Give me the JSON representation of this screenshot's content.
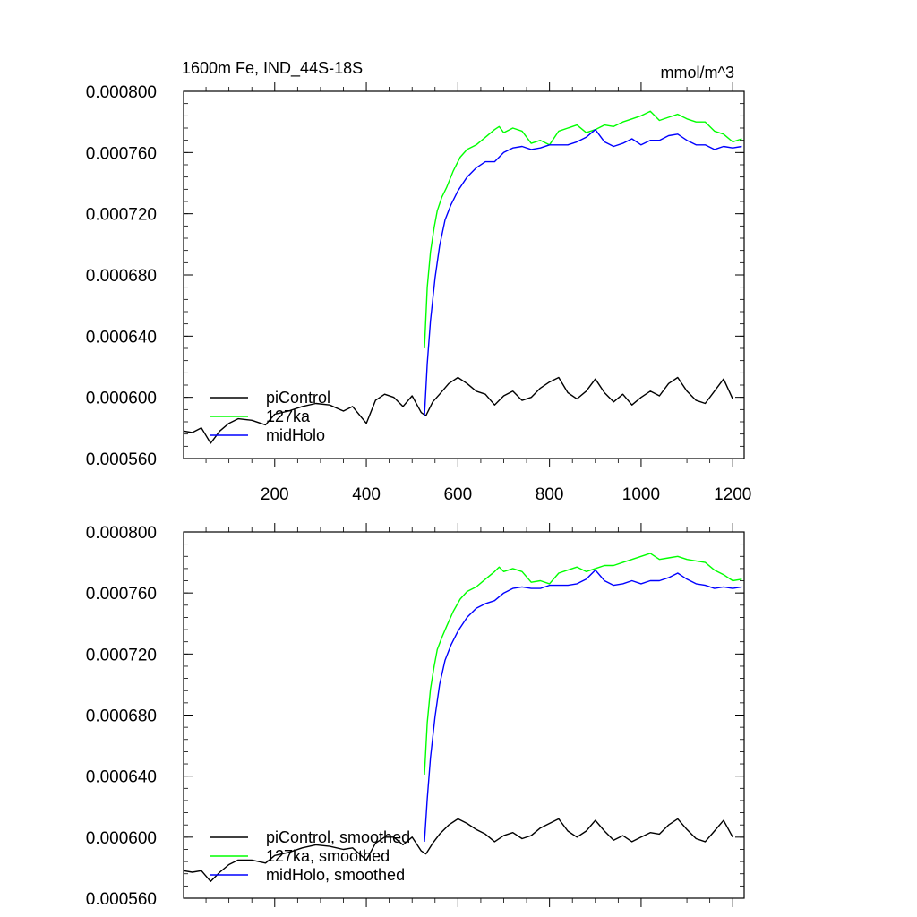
{
  "chart_data": [
    {
      "type": "line",
      "title": "1600m Fe, IND_44S-18S",
      "units": "mmol/m^3",
      "xlim": [
        1,
        1225
      ],
      "ylim": [
        0.00056,
        0.0008
      ],
      "x_ticks": [
        200,
        400,
        600,
        800,
        1000,
        1200
      ],
      "x_tick_labels": [
        "200",
        "400",
        "600",
        "800",
        "1000",
        "1200"
      ],
      "y_ticks": [
        0.00056,
        0.0006,
        0.00064,
        0.00068,
        0.00072,
        0.00076,
        0.0008
      ],
      "y_tick_labels": [
        "0.000560",
        "0.000600",
        "0.000640",
        "0.000680",
        "0.000720",
        "0.000760",
        "0.000800"
      ],
      "legend": [
        "piControl",
        "127ka",
        "midHolo"
      ],
      "legend_position": "lower-left",
      "series": [
        {
          "name": "piControl",
          "color": "#000000",
          "x": [
            1,
            20,
            40,
            60,
            80,
            100,
            120,
            150,
            180,
            200,
            230,
            260,
            290,
            320,
            350,
            370,
            400,
            420,
            440,
            460,
            480,
            500,
            520,
            530,
            545,
            560,
            580,
            600,
            620,
            640,
            660,
            680,
            700,
            720,
            740,
            760,
            780,
            800,
            820,
            840,
            860,
            880,
            900,
            920,
            940,
            960,
            980,
            1000,
            1020,
            1040,
            1060,
            1080,
            1100,
            1120,
            1140,
            1160,
            1180,
            1200
          ],
          "y": [
            0.000578,
            0.000577,
            0.00058,
            0.00057,
            0.000578,
            0.000583,
            0.000586,
            0.000585,
            0.000582,
            0.000589,
            0.000591,
            0.000594,
            0.000596,
            0.000595,
            0.000591,
            0.000594,
            0.000583,
            0.000598,
            0.000602,
            0.0006,
            0.000594,
            0.000601,
            0.00059,
            0.000588,
            0.000597,
            0.000602,
            0.000609,
            0.000613,
            0.000609,
            0.000604,
            0.000602,
            0.000595,
            0.000601,
            0.000604,
            0.000598,
            0.0006,
            0.000606,
            0.00061,
            0.000613,
            0.000603,
            0.000599,
            0.000604,
            0.000612,
            0.000603,
            0.000597,
            0.000602,
            0.000595,
            0.0006,
            0.000604,
            0.000601,
            0.000609,
            0.000613,
            0.000604,
            0.000598,
            0.000596,
            0.000604,
            0.000612,
            0.000599
          ]
        },
        {
          "name": "127ka",
          "color": "#00ff00",
          "x": [
            527,
            533,
            540,
            548,
            555,
            565,
            575,
            590,
            605,
            620,
            640,
            660,
            680,
            690,
            700,
            720,
            740,
            760,
            780,
            800,
            820,
            840,
            860,
            880,
            900,
            920,
            940,
            960,
            980,
            1000,
            1020,
            1040,
            1060,
            1080,
            1100,
            1120,
            1140,
            1160,
            1180,
            1200,
            1220
          ],
          "y": [
            0.000632,
            0.000672,
            0.000695,
            0.000711,
            0.000722,
            0.000731,
            0.000737,
            0.000748,
            0.000757,
            0.000762,
            0.000765,
            0.00077,
            0.000775,
            0.000777,
            0.000773,
            0.000776,
            0.000774,
            0.000766,
            0.000768,
            0.000765,
            0.000774,
            0.000776,
            0.000778,
            0.000773,
            0.000775,
            0.000778,
            0.000777,
            0.00078,
            0.000782,
            0.000784,
            0.000787,
            0.000781,
            0.000783,
            0.000785,
            0.000782,
            0.00078,
            0.00078,
            0.000774,
            0.000772,
            0.000767,
            0.000769
          ]
        },
        {
          "name": "midHolo",
          "color": "#0000ff",
          "x": [
            527,
            533,
            540,
            550,
            560,
            572,
            585,
            600,
            620,
            640,
            660,
            680,
            700,
            720,
            740,
            760,
            780,
            800,
            820,
            840,
            860,
            880,
            900,
            920,
            940,
            960,
            980,
            1000,
            1020,
            1040,
            1060,
            1080,
            1100,
            1120,
            1140,
            1160,
            1180,
            1200,
            1220
          ],
          "y": [
            0.000588,
            0.000622,
            0.00065,
            0.000678,
            0.000699,
            0.000716,
            0.000726,
            0.000735,
            0.000744,
            0.00075,
            0.000754,
            0.000754,
            0.00076,
            0.000763,
            0.000764,
            0.000762,
            0.000763,
            0.000765,
            0.000765,
            0.000765,
            0.000767,
            0.00077,
            0.000775,
            0.000767,
            0.000764,
            0.000766,
            0.000769,
            0.000765,
            0.000768,
            0.000768,
            0.000771,
            0.000772,
            0.000768,
            0.000765,
            0.000765,
            0.000762,
            0.000764,
            0.000763,
            0.000764
          ]
        }
      ]
    },
    {
      "type": "line",
      "title": "",
      "units": "",
      "xlim": [
        1,
        1225
      ],
      "ylim": [
        0.00056,
        0.0008
      ],
      "x_ticks": [
        200,
        400,
        600,
        800,
        1000,
        1200
      ],
      "x_tick_labels": [],
      "y_ticks": [
        0.00056,
        0.0006,
        0.00064,
        0.00068,
        0.00072,
        0.00076,
        0.0008
      ],
      "y_tick_labels": [
        "0.000560",
        "0.000600",
        "0.000640",
        "0.000680",
        "0.000720",
        "0.000760",
        "0.000800"
      ],
      "legend": [
        "piControl, smoothed",
        "127ka, smoothed",
        "midHolo, smoothed"
      ],
      "legend_position": "lower-left",
      "series": [
        {
          "name": "piControl, smoothed",
          "color": "#000000",
          "x": [
            1,
            20,
            40,
            60,
            80,
            100,
            120,
            150,
            180,
            200,
            230,
            260,
            290,
            320,
            350,
            370,
            400,
            420,
            440,
            460,
            480,
            500,
            520,
            530,
            545,
            560,
            580,
            600,
            620,
            640,
            660,
            680,
            700,
            720,
            740,
            760,
            780,
            800,
            820,
            840,
            860,
            880,
            900,
            920,
            940,
            960,
            980,
            1000,
            1020,
            1040,
            1060,
            1080,
            1100,
            1120,
            1140,
            1160,
            1180,
            1200
          ],
          "y": [
            0.000578,
            0.000577,
            0.000578,
            0.000571,
            0.000577,
            0.000582,
            0.000585,
            0.000585,
            0.000583,
            0.000588,
            0.00059,
            0.000593,
            0.000595,
            0.000594,
            0.000592,
            0.000593,
            0.000585,
            0.000596,
            0.0006,
            0.0006,
            0.000595,
            0.0006,
            0.000591,
            0.000589,
            0.000596,
            0.000602,
            0.000608,
            0.000612,
            0.000609,
            0.000605,
            0.000602,
            0.000597,
            0.000601,
            0.000603,
            0.000599,
            0.000601,
            0.000606,
            0.000609,
            0.000612,
            0.000604,
            0.0006,
            0.000604,
            0.000611,
            0.000604,
            0.000598,
            0.000601,
            0.000597,
            0.0006,
            0.000603,
            0.000602,
            0.000608,
            0.000612,
            0.000605,
            0.000599,
            0.000597,
            0.000604,
            0.000611,
            0.0006
          ]
        },
        {
          "name": "127ka, smoothed",
          "color": "#00ff00",
          "x": [
            527,
            533,
            540,
            548,
            555,
            565,
            575,
            590,
            605,
            620,
            640,
            660,
            680,
            690,
            700,
            720,
            740,
            760,
            780,
            800,
            820,
            840,
            860,
            880,
            900,
            920,
            940,
            960,
            980,
            1000,
            1020,
            1040,
            1060,
            1080,
            1100,
            1120,
            1140,
            1160,
            1180,
            1200,
            1220
          ],
          "y": [
            0.000641,
            0.000675,
            0.000697,
            0.000712,
            0.000723,
            0.000731,
            0.000738,
            0.000748,
            0.000756,
            0.000761,
            0.000764,
            0.000769,
            0.000774,
            0.000777,
            0.000774,
            0.000776,
            0.000774,
            0.000767,
            0.000768,
            0.000766,
            0.000773,
            0.000775,
            0.000777,
            0.000774,
            0.000776,
            0.000778,
            0.000778,
            0.00078,
            0.000782,
            0.000784,
            0.000786,
            0.000782,
            0.000783,
            0.000784,
            0.000782,
            0.000781,
            0.00078,
            0.000775,
            0.000772,
            0.000768,
            0.000769
          ]
        },
        {
          "name": "midHolo, smoothed",
          "color": "#0000ff",
          "x": [
            527,
            533,
            540,
            550,
            560,
            572,
            585,
            600,
            620,
            640,
            660,
            680,
            700,
            720,
            740,
            760,
            780,
            800,
            820,
            840,
            860,
            880,
            900,
            920,
            940,
            960,
            980,
            1000,
            1020,
            1040,
            1060,
            1080,
            1100,
            1120,
            1140,
            1160,
            1180,
            1200,
            1220
          ],
          "y": [
            0.000597,
            0.000625,
            0.000652,
            0.000679,
            0.0007,
            0.000716,
            0.000726,
            0.000735,
            0.000744,
            0.00075,
            0.000753,
            0.000755,
            0.00076,
            0.000763,
            0.000764,
            0.000763,
            0.000763,
            0.000765,
            0.000765,
            0.000765,
            0.000766,
            0.000769,
            0.000775,
            0.000768,
            0.000765,
            0.000766,
            0.000768,
            0.000766,
            0.000768,
            0.000768,
            0.00077,
            0.000773,
            0.000769,
            0.000766,
            0.000765,
            0.000763,
            0.000764,
            0.000763,
            0.000764
          ]
        }
      ]
    }
  ]
}
